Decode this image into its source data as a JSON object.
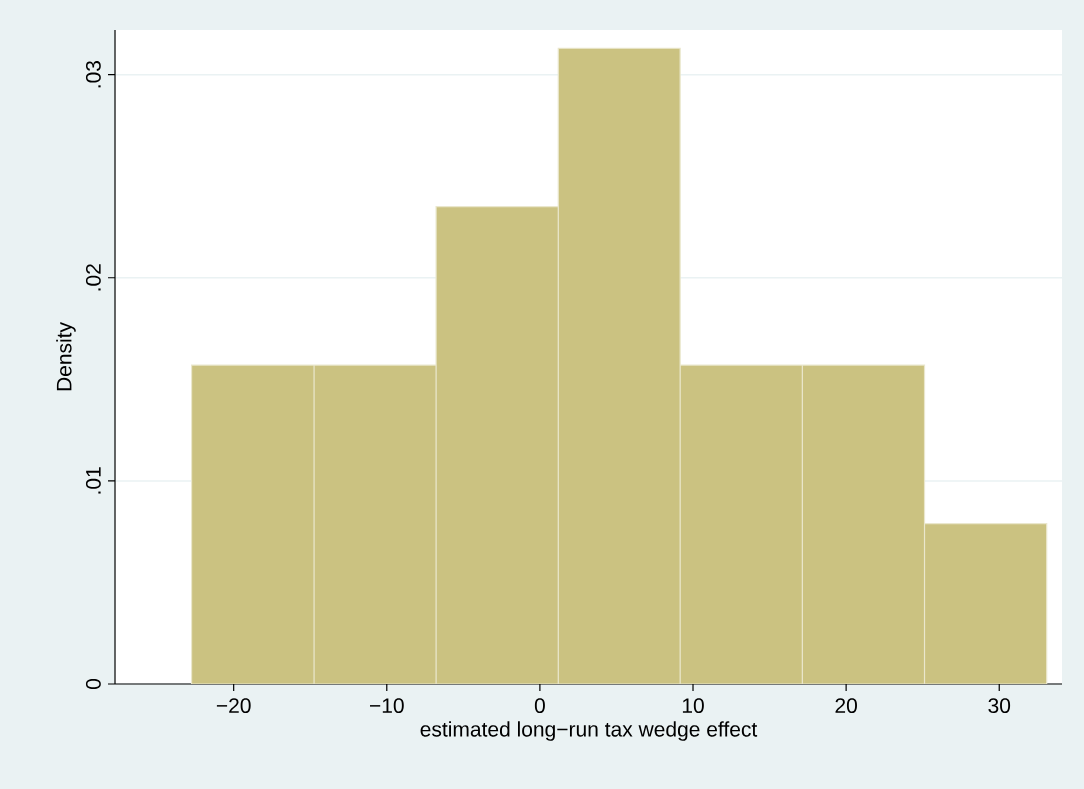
{
  "chart_data": {
    "type": "histogram",
    "xlabel": "estimated long−run tax wedge effect",
    "ylabel": "Density",
    "bins": [
      -22.75,
      -14.75,
      -6.78,
      1.2,
      9.16,
      17.14,
      25.12,
      33.1
    ],
    "values": [
      0.0157,
      0.0157,
      0.0235,
      0.0313,
      0.0157,
      0.0157,
      0.0079
    ],
    "color": "#cbc281",
    "xlim": [
      -27.75,
      34.1
    ],
    "ylim": [
      0,
      0.0322
    ],
    "xticks": [
      {
        "value": -20,
        "label": "−20"
      },
      {
        "value": -10,
        "label": "−10"
      },
      0,
      10,
      20,
      30
    ],
    "yticks": [
      0,
      {
        "value": 0.01,
        "label": ".01"
      },
      {
        "value": 0.02,
        "label": ".02"
      },
      {
        "value": 0.03,
        "label": ".03"
      }
    ],
    "grid": "y"
  }
}
